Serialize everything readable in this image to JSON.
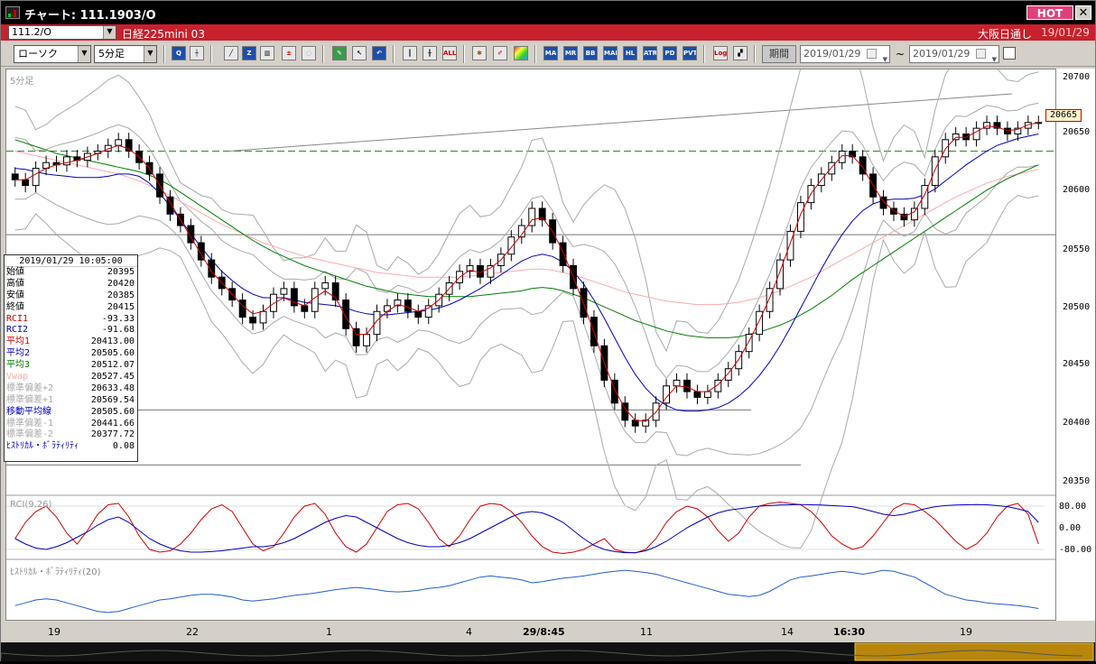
{
  "window": {
    "title": "チャート: 111.1903/O",
    "hot_label": "HOT",
    "close_label": "✕"
  },
  "symbol_bar": {
    "symbol": "111.2/O",
    "name": "日経225mini 03",
    "market": "大阪日通し",
    "date": "19/01/29"
  },
  "toolbar": {
    "chart_type": "ローソク",
    "timeframe": "5分足",
    "buttons": [
      "search",
      "crosshair",
      "line",
      "zoom",
      "chart",
      "trade",
      "off",
      "draw",
      "cursor",
      "back",
      "candle",
      "bar",
      "all",
      "settings",
      "color",
      "palette",
      "ma",
      "mr",
      "bb",
      "mae",
      "hl",
      "atr",
      "pd",
      "pvt",
      "log",
      "multi"
    ],
    "period_label": "期間",
    "date_from": "2019/01/29",
    "date_to": "2019/01/29",
    "range_sep": "~"
  },
  "main_panel": {
    "label": "5分足",
    "price_ticks": [
      "20700",
      "20650",
      "20600",
      "20550",
      "20500",
      "20450",
      "20400",
      "20350"
    ],
    "current_price": "20665"
  },
  "info": {
    "datetime": "2019/01/29 10:05:00",
    "rows": [
      {
        "label": "始値",
        "value": "20395",
        "color": "#000"
      },
      {
        "label": "高値",
        "value": "20420",
        "color": "#000"
      },
      {
        "label": "安値",
        "value": "20385",
        "color": "#000"
      },
      {
        "label": "終値",
        "value": "20415",
        "color": "#000"
      },
      {
        "label": "RCI1",
        "value": "-93.33",
        "color": "#d00000"
      },
      {
        "label": "RCI2",
        "value": "-91.68",
        "color": "#0000c0"
      },
      {
        "label": "平均1",
        "value": "20413.00",
        "color": "#d00000"
      },
      {
        "label": "平均2",
        "value": "20505.60",
        "color": "#0000c0"
      },
      {
        "label": "平均3",
        "value": "20512.07",
        "color": "#008000"
      },
      {
        "label": "Vwap",
        "value": "20527.45",
        "color": "#ffaaaa"
      },
      {
        "label": "標準偏差+2",
        "value": "20633.48",
        "color": "#aaaaaa"
      },
      {
        "label": "標準偏差+1",
        "value": "20569.54",
        "color": "#aaaaaa"
      },
      {
        "label": "移動平均線",
        "value": "20505.60",
        "color": "#0000c0"
      },
      {
        "label": "標準偏差-1",
        "value": "20441.66",
        "color": "#aaaaaa"
      },
      {
        "label": "標準偏差-2",
        "value": "20377.72",
        "color": "#aaaaaa"
      },
      {
        "label": "ﾋｽﾄﾘｶﾙ・ﾎﾞﾗﾃｨﾘﾃｨ",
        "value": "0.08",
        "color": "#0000c0"
      }
    ]
  },
  "rci_panel": {
    "label": "RCI(9,26)",
    "ticks": [
      "80.00",
      "0.00",
      "-80.00"
    ]
  },
  "hv_panel": {
    "label": "ﾋｽﾄﾘｶﾙ・ﾎﾞﾗﾃｨﾘﾃｨ(20)"
  },
  "x_axis": {
    "labels": [
      {
        "text": "19",
        "bold": false
      },
      {
        "text": "22",
        "bold": false
      },
      {
        "text": "1",
        "bold": false
      },
      {
        "text": "4",
        "bold": false
      },
      {
        "text": "29/8:45",
        "bold": true
      },
      {
        "text": "11",
        "bold": false
      },
      {
        "text": "14",
        "bold": false
      },
      {
        "text": "16:30",
        "bold": true
      },
      {
        "text": "19",
        "bold": false
      }
    ]
  },
  "colors": {
    "up": "#ffffff",
    "down": "#000000",
    "ma1": "#d00000",
    "ma2": "#0000c0",
    "ma3": "#008000",
    "vwap": "#ffaaaa",
    "band": "#aaaaaa",
    "hv": "#1f5fd0"
  },
  "chart_data": {
    "type": "candlestick",
    "ylim": [
      20345,
      20705
    ],
    "closes": [
      20615,
      20610,
      20625,
      20630,
      20628,
      20635,
      20632,
      20638,
      20640,
      20645,
      20650,
      20640,
      20630,
      20620,
      20600,
      20585,
      20575,
      20560,
      20545,
      20530,
      20520,
      20510,
      20495,
      20490,
      20500,
      20515,
      20520,
      20505,
      20500,
      20520,
      20525,
      20510,
      20485,
      20470,
      20480,
      20500,
      20505,
      20510,
      20500,
      20495,
      20505,
      20515,
      20525,
      20535,
      20540,
      20530,
      20540,
      20550,
      20565,
      20575,
      20590,
      20580,
      20560,
      20540,
      20520,
      20495,
      20470,
      20440,
      20420,
      20405,
      20400,
      20405,
      20420,
      20435,
      20440,
      20430,
      20425,
      20430,
      20440,
      20450,
      20465,
      20480,
      20500,
      20520,
      20545,
      20570,
      20595,
      20610,
      20620,
      20630,
      20640,
      20635,
      20620,
      20600,
      20590,
      20585,
      20580,
      20590,
      20610,
      20635,
      20650,
      20655,
      20650,
      20660,
      20665,
      20660,
      20655,
      20660,
      20665,
      20665
    ],
    "ma1": [
      20615,
      20615,
      20620,
      20625,
      20628,
      20630,
      20632,
      20635,
      20638,
      20642,
      20645,
      20642,
      20635,
      20625,
      20610,
      20595,
      20580,
      20565,
      20550,
      20535,
      20525,
      20515,
      20505,
      20498,
      20500,
      20507,
      20512,
      20508,
      20505,
      20512,
      20518,
      20512,
      20495,
      20480,
      20480,
      20492,
      20500,
      20506,
      20504,
      20500,
      20503,
      20510,
      20520,
      20530,
      20536,
      20534,
      20538,
      20545,
      20556,
      20567,
      20580,
      20582,
      20570,
      20552,
      20530,
      20507,
      20482,
      20455,
      20432,
      20415,
      20405,
      20404,
      20412,
      20425,
      20435,
      20434,
      20430,
      20430,
      20436,
      20446,
      20458,
      20474,
      20492,
      20512,
      20535,
      20560,
      20585,
      20603,
      20615,
      20626,
      20636,
      20636,
      20626,
      20610,
      20596,
      20588,
      20583,
      20587,
      20602,
      20624,
      20642,
      20652,
      20652,
      20657,
      20662,
      20661,
      20658,
      20659,
      20663,
      20665
    ],
    "ma2": [
      20625,
      20624,
      20622,
      20620,
      20619,
      20618,
      20617,
      20617,
      20617,
      20618,
      20620,
      20620,
      20618,
      20612,
      20603,
      20592,
      20580,
      20568,
      20556,
      20545,
      20535,
      20527,
      20520,
      20515,
      20512,
      20512,
      20512,
      20510,
      20508,
      20507,
      20506,
      20505,
      20503,
      20500,
      20498,
      20497,
      20497,
      20498,
      20499,
      20500,
      20501,
      20503,
      20506,
      20510,
      20515,
      20520,
      20526,
      20532,
      20538,
      20544,
      20548,
      20550,
      20548,
      20543,
      20535,
      20524,
      20510,
      20494,
      20477,
      20460,
      20445,
      20433,
      20424,
      20418,
      20414,
      20413,
      20413,
      20414,
      20416,
      20420,
      20426,
      20434,
      20444,
      20456,
      20470,
      20486,
      20503,
      20520,
      20537,
      20553,
      20567,
      20579,
      20588,
      20594,
      20597,
      20598,
      20598,
      20599,
      20602,
      20607,
      20614,
      20621,
      20628,
      20634,
      20640,
      20645,
      20648,
      20651,
      20653,
      20655
    ],
    "ma3": [
      20650,
      20647,
      20644,
      20641,
      20638,
      20636,
      20634,
      20632,
      20630,
      20628,
      20626,
      20624,
      20622,
      20619,
      20615,
      20610,
      20604,
      20598,
      20592,
      20586,
      20580,
      20574,
      20568,
      20562,
      20557,
      20552,
      20548,
      20544,
      20540,
      20537,
      20534,
      20531,
      20528,
      20525,
      20522,
      20520,
      20518,
      20516,
      20515,
      20514,
      20513,
      20513,
      20513,
      20513,
      20513,
      20514,
      20515,
      20516,
      20517,
      20518,
      20520,
      20521,
      20520,
      20518,
      20515,
      20512,
      20508,
      20504,
      20500,
      20496,
      20492,
      20489,
      20486,
      20483,
      20481,
      20479,
      20478,
      20477,
      20477,
      20477,
      20478,
      20480,
      20482,
      20485,
      20488,
      20492,
      20497,
      20502,
      20508,
      20514,
      20521,
      20528,
      20534,
      20540,
      20546,
      20552,
      20558,
      20564,
      20570,
      20576,
      20582,
      20588,
      20594,
      20600,
      20606,
      20611,
      20616,
      20620,
      20624,
      20628
    ],
    "vwap": [
      20640,
      20638,
      20636,
      20634,
      20632,
      20630,
      20628,
      20626,
      20624,
      20622,
      20620,
      20617,
      20614,
      20610,
      20606,
      20601,
      20596,
      20591,
      20586,
      20581,
      20576,
      20572,
      20568,
      20564,
      20560,
      20557,
      20554,
      20551,
      20548,
      20546,
      20544,
      20542,
      20540,
      20538,
      20536,
      20534,
      20533,
      20532,
      20531,
      20530,
      20530,
      20530,
      20530,
      20530,
      20531,
      20532,
      20533,
      20534,
      20535,
      20536,
      20537,
      20537,
      20536,
      20534,
      20532,
      20529,
      20526,
      20523,
      20520,
      20517,
      20515,
      20513,
      20511,
      20509,
      20508,
      20507,
      20506,
      20506,
      20506,
      20507,
      20508,
      20510,
      20512,
      20515,
      20518,
      20522,
      20526,
      20530,
      20535,
      20540,
      20545,
      20550,
      20555,
      20560,
      20565,
      20570,
      20575,
      20580,
      20585,
      20590,
      20595,
      20600,
      20604,
      20608,
      20612,
      20615,
      20618,
      20620,
      20622,
      20624
    ],
    "rci1": [
      -40,
      20,
      60,
      80,
      40,
      -20,
      -60,
      -10,
      50,
      85,
      90,
      40,
      -30,
      -80,
      -90,
      -85,
      -60,
      -20,
      30,
      70,
      85,
      60,
      0,
      -60,
      -85,
      -70,
      -20,
      40,
      80,
      90,
      50,
      -20,
      -70,
      -90,
      -60,
      0,
      60,
      85,
      90,
      70,
      20,
      -40,
      -70,
      -30,
      30,
      80,
      90,
      85,
      60,
      20,
      -30,
      -70,
      -90,
      -95,
      -90,
      -80,
      -60,
      -40,
      -80,
      -90,
      -93,
      -80,
      -40,
      20,
      60,
      80,
      70,
      40,
      -10,
      -50,
      -20,
      40,
      80,
      90,
      95,
      90,
      85,
      60,
      20,
      -30,
      -60,
      -80,
      -70,
      -30,
      20,
      70,
      90,
      85,
      60,
      30,
      -10,
      -50,
      -80,
      -60,
      -20,
      40,
      80,
      90,
      50,
      -60
    ],
    "rci2": [
      -40,
      -60,
      -75,
      -80,
      -70,
      -55,
      -35,
      -15,
      10,
      30,
      40,
      20,
      -10,
      -40,
      -60,
      -75,
      -85,
      -90,
      -90,
      -88,
      -85,
      -80,
      -75,
      -70,
      -70,
      -65,
      -55,
      -40,
      -20,
      0,
      20,
      35,
      45,
      40,
      20,
      0,
      -20,
      -40,
      -55,
      -65,
      -70,
      -70,
      -65,
      -55,
      -40,
      -20,
      0,
      20,
      40,
      55,
      60,
      55,
      40,
      20,
      -10,
      -40,
      -65,
      -80,
      -88,
      -92,
      -92,
      -85,
      -70,
      -50,
      -25,
      0,
      20,
      40,
      55,
      65,
      70,
      75,
      80,
      82,
      84,
      85,
      86,
      85,
      84,
      82,
      80,
      78,
      70,
      60,
      50,
      45,
      50,
      60,
      70,
      78,
      82,
      84,
      85,
      86,
      85,
      82,
      78,
      70,
      60,
      20
    ],
    "hv": [
      0.06,
      0.065,
      0.07,
      0.072,
      0.07,
      0.065,
      0.06,
      0.055,
      0.05,
      0.048,
      0.05,
      0.055,
      0.06,
      0.065,
      0.07,
      0.072,
      0.075,
      0.078,
      0.08,
      0.08,
      0.078,
      0.075,
      0.07,
      0.068,
      0.07,
      0.072,
      0.075,
      0.078,
      0.08,
      0.082,
      0.085,
      0.088,
      0.09,
      0.092,
      0.09,
      0.088,
      0.085,
      0.084,
      0.085,
      0.087,
      0.09,
      0.092,
      0.095,
      0.1,
      0.105,
      0.11,
      0.112,
      0.11,
      0.108,
      0.105,
      0.1,
      0.102,
      0.105,
      0.108,
      0.11,
      0.112,
      0.115,
      0.118,
      0.12,
      0.122,
      0.12,
      0.118,
      0.115,
      0.11,
      0.105,
      0.1,
      0.095,
      0.09,
      0.085,
      0.08,
      0.078,
      0.076,
      0.078,
      0.085,
      0.095,
      0.105,
      0.11,
      0.112,
      0.115,
      0.118,
      0.12,
      0.118,
      0.115,
      0.118,
      0.122,
      0.12,
      0.115,
      0.11,
      0.1,
      0.09,
      0.08,
      0.075,
      0.07,
      0.068,
      0.065,
      0.063,
      0.062,
      0.06,
      0.058,
      0.055
    ],
    "horizontal_lines": [
      20640,
      20567,
      20414,
      20366
    ],
    "trendline": {
      "from": [
        29,
        20640
      ],
      "to": [
        135,
        20690
      ]
    }
  }
}
